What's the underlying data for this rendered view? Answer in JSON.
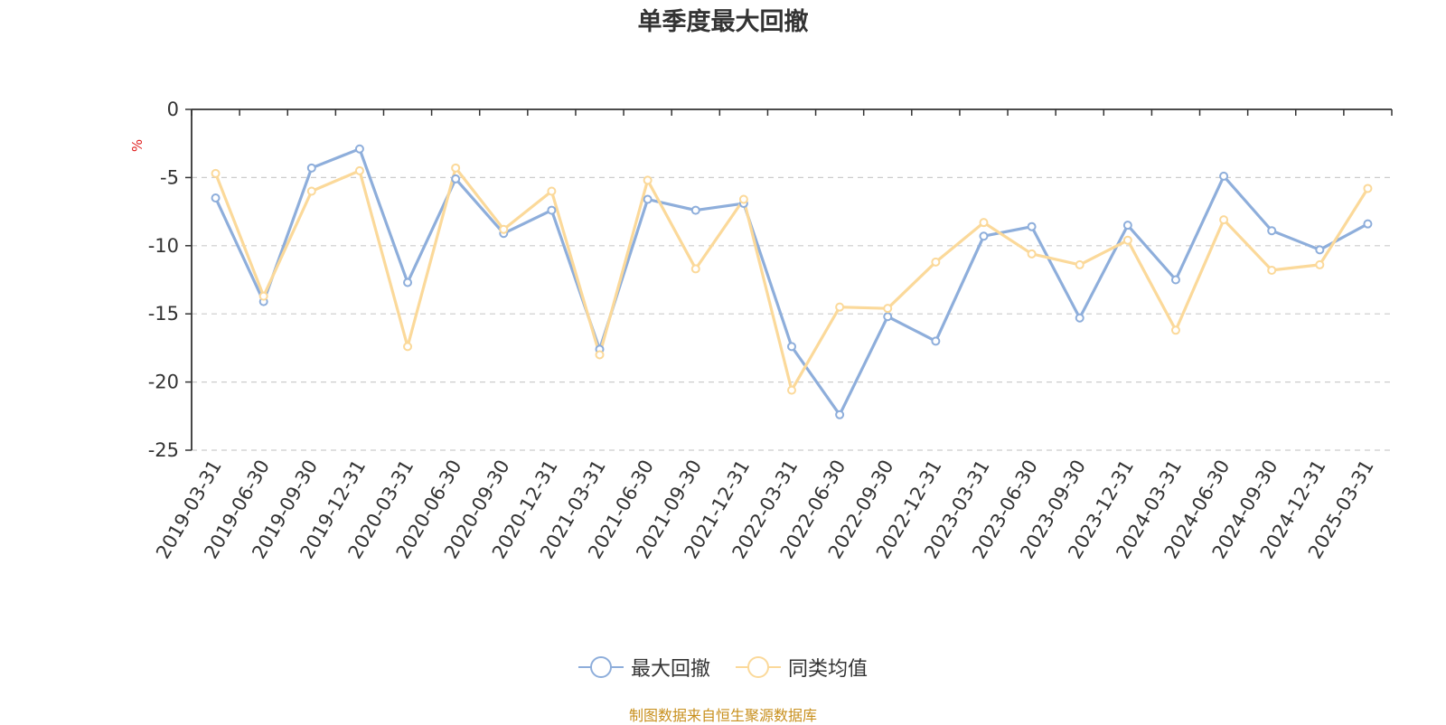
{
  "title": "单季度最大回撤",
  "footer": "制图数据来自恒生聚源数据库",
  "chart_data": {
    "type": "line",
    "title": "单季度最大回撤",
    "ylabel": "%",
    "xlabel": "",
    "ylim": [
      -25,
      0
    ],
    "yticks": [
      0,
      -5,
      -10,
      -15,
      -20,
      -25
    ],
    "grid": true,
    "legend_position": "bottom",
    "categories": [
      "2019-03-31",
      "2019-06-30",
      "2019-09-30",
      "2019-12-31",
      "2020-03-31",
      "2020-06-30",
      "2020-09-30",
      "2020-12-31",
      "2021-03-31",
      "2021-06-30",
      "2021-09-30",
      "2021-12-31",
      "2022-03-31",
      "2022-06-30",
      "2022-09-30",
      "2022-12-31",
      "2023-03-31",
      "2023-06-30",
      "2023-09-30",
      "2023-12-31",
      "2024-03-31",
      "2024-06-30",
      "2024-09-30",
      "2024-12-31",
      "2025-03-31"
    ],
    "series": [
      {
        "name": "最大回撤",
        "color": "#8eaedb",
        "values": [
          -6.5,
          -14.1,
          -4.3,
          -2.9,
          -12.7,
          -5.1,
          -9.1,
          -7.4,
          -17.6,
          -6.6,
          -7.4,
          -6.9,
          -17.4,
          -22.4,
          -15.2,
          -17.0,
          -9.3,
          -8.6,
          -15.3,
          -8.5,
          -12.5,
          -4.9,
          -8.9,
          -10.3,
          -8.4
        ]
      },
      {
        "name": "同类均值",
        "color": "#fbd99a",
        "values": [
          -4.7,
          -13.7,
          -6.0,
          -4.5,
          -17.4,
          -4.3,
          -8.8,
          -6.0,
          -18.0,
          -5.2,
          -11.7,
          -6.6,
          -20.6,
          -14.5,
          -14.6,
          -11.2,
          -8.3,
          -10.6,
          -11.4,
          -9.6,
          -16.2,
          -8.1,
          -11.8,
          -11.4,
          -5.8
        ]
      }
    ]
  }
}
